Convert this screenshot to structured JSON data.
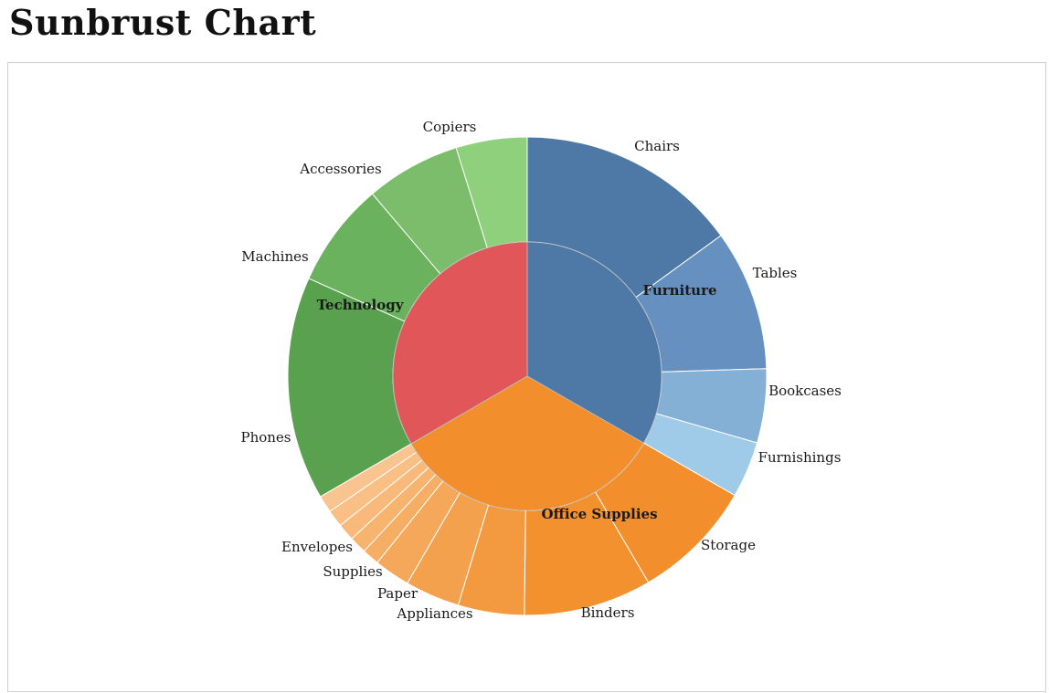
{
  "page": {
    "title": "Sunbrust Chart"
  },
  "chart_data": {
    "type": "sunburst",
    "title": "",
    "categories": [
      {
        "name": "Furniture",
        "color": "#4e79a7",
        "value": 33.3,
        "children": [
          {
            "name": "Chairs",
            "value": 15.0,
            "color": "#4e79a7"
          },
          {
            "name": "Tables",
            "value": 9.5,
            "color": "#6690bf"
          },
          {
            "name": "Bookcases",
            "value": 5.0,
            "color": "#85b0d6"
          },
          {
            "name": "Furnishings",
            "value": 3.8,
            "color": "#a0cbe8"
          }
        ]
      },
      {
        "name": "Office Supplies",
        "color": "#f28e2b",
        "value": 33.3,
        "children": [
          {
            "name": "Storage",
            "value": 8.5,
            "color": "#f28e2b"
          },
          {
            "name": "Binders",
            "value": 8.9,
            "color": "#f3912f"
          },
          {
            "name": "Appliances",
            "value": 4.6,
            "color": "#f39a40"
          },
          {
            "name": "Paper",
            "value": 3.8,
            "color": "#f4a14d"
          },
          {
            "name": "Supplies",
            "value": 2.5,
            "color": "#f5a85a"
          },
          {
            "name": "Envelopes",
            "value": 1.2,
            "color": "#f6ae65"
          },
          {
            "name": "",
            "value": 1.2,
            "color": "#f7b46f"
          },
          {
            "name": "",
            "value": 1.2,
            "color": "#f8b97a"
          },
          {
            "name": "",
            "value": 1.2,
            "color": "#f9bf85"
          },
          {
            "name": "",
            "value": 1.2,
            "color": "#fac490"
          }
        ]
      },
      {
        "name": "Technology",
        "color": "#e15759",
        "value": 33.4,
        "children": [
          {
            "name": "Phones",
            "value": 15.1,
            "color": "#59a14f"
          },
          {
            "name": "Machines",
            "value": 7.1,
            "color": "#6ab25d"
          },
          {
            "name": "Accessories",
            "value": 6.4,
            "color": "#7bbd6a"
          },
          {
            "name": "Copiers",
            "value": 4.8,
            "color": "#8ed07c"
          }
        ]
      }
    ]
  }
}
